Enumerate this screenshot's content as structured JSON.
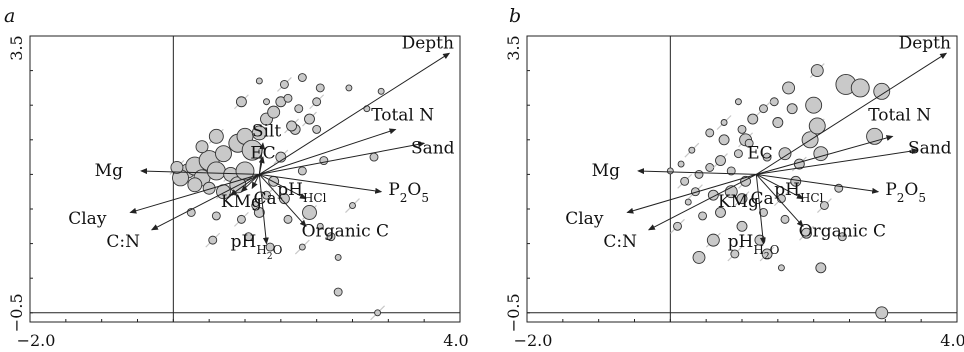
{
  "chart_data": [
    {
      "type": "scatter",
      "panel_label": "a",
      "xlim": [
        -2.0,
        4.0
      ],
      "ylim": [
        -0.5,
        3.5
      ],
      "x_tick_labels": [
        "−2.0",
        "4.0"
      ],
      "y_tick_labels": [
        "3.5",
        "−0.5"
      ],
      "origin": {
        "x": 0.0,
        "y": 1.0
      },
      "reference_lines": {
        "x": 0.0,
        "y": -0.5
      },
      "vectors": [
        {
          "name": "Depth",
          "x": 3.85,
          "y": 3.25
        },
        {
          "name": "Total N",
          "x": 3.1,
          "y": 2.15
        },
        {
          "name": "Sand",
          "x": 3.5,
          "y": 1.95
        },
        {
          "name": "Mg",
          "x": -0.45,
          "y": 1.55
        },
        {
          "name": "Clay",
          "x": -0.6,
          "y": 0.95
        },
        {
          "name": "C:N",
          "x": -0.3,
          "y": 0.7
        },
        {
          "name": "P2O5",
          "x": 2.9,
          "y": 1.25
        },
        {
          "name": "pH_HCl",
          "x": 1.85,
          "y": 1.15
        },
        {
          "name": "Organic C",
          "x": 1.85,
          "y": 0.75
        },
        {
          "name": "pH_H2O",
          "x": 1.3,
          "y": 0.5
        },
        {
          "name": "Silt",
          "x": 1.25,
          "y": 1.95
        },
        {
          "name": "EC",
          "x": 1.25,
          "y": 1.75
        },
        {
          "name": "Ca",
          "x": 1.1,
          "y": 1.3
        },
        {
          "name": "K",
          "x": 0.8,
          "y": 1.2
        },
        {
          "name": "Mg_short",
          "x": 0.95,
          "y": 1.25
        }
      ],
      "vector_origin": {
        "x": 1.2,
        "y": 1.5
      },
      "label_texts": {
        "Depth": "Depth",
        "Total N": "Total N",
        "Sand": "Sand",
        "Mg": "Mg",
        "Clay": "Clay",
        "C:N": "C:N",
        "Organic C": "Organic C",
        "Silt": "Silt",
        "EC": "EC",
        "KMg": "KMg",
        "Ca": "Ca"
      },
      "points": [
        {
          "x": 0.2,
          "y": 1.55,
          "s": 7
        },
        {
          "x": 0.3,
          "y": 1.62,
          "s": 9
        },
        {
          "x": 0.4,
          "y": 1.45,
          "s": 8
        },
        {
          "x": 0.5,
          "y": 1.7,
          "s": 10
        },
        {
          "x": 0.6,
          "y": 1.55,
          "s": 9
        },
        {
          "x": 0.7,
          "y": 1.8,
          "s": 8
        },
        {
          "x": 0.8,
          "y": 1.5,
          "s": 7
        },
        {
          "x": 0.9,
          "y": 1.95,
          "s": 9
        },
        {
          "x": 1.0,
          "y": 2.05,
          "s": 8
        },
        {
          "x": 1.1,
          "y": 1.85,
          "s": 10
        },
        {
          "x": 0.3,
          "y": 1.35,
          "s": 7
        },
        {
          "x": 0.5,
          "y": 1.3,
          "s": 6
        },
        {
          "x": 0.7,
          "y": 1.25,
          "s": 7
        },
        {
          "x": 0.9,
          "y": 1.35,
          "s": 8
        },
        {
          "x": 1.0,
          "y": 1.55,
          "s": 9
        },
        {
          "x": 0.6,
          "y": 2.05,
          "s": 7
        },
        {
          "x": 0.4,
          "y": 1.9,
          "s": 6
        },
        {
          "x": 0.1,
          "y": 1.45,
          "s": 8
        },
        {
          "x": 0.05,
          "y": 1.6,
          "s": 6
        },
        {
          "x": 1.2,
          "y": 2.1,
          "s": 7
        },
        {
          "x": 1.3,
          "y": 2.3,
          "s": 6
        },
        {
          "x": 1.5,
          "y": 2.55,
          "s": 5
        },
        {
          "x": 1.6,
          "y": 2.6,
          "s": 4
        },
        {
          "x": 1.75,
          "y": 2.45,
          "s": 4
        },
        {
          "x": 1.9,
          "y": 2.3,
          "s": 5
        },
        {
          "x": 2.0,
          "y": 2.15,
          "s": 4
        },
        {
          "x": 1.4,
          "y": 2.4,
          "s": 6
        },
        {
          "x": 0.95,
          "y": 2.55,
          "s": 5
        },
        {
          "x": 1.7,
          "y": 2.15,
          "s": 5
        },
        {
          "x": 2.1,
          "y": 1.7,
          "s": 4
        },
        {
          "x": 1.5,
          "y": 1.75,
          "s": 5
        },
        {
          "x": 1.8,
          "y": 1.55,
          "s": 4
        },
        {
          "x": 1.4,
          "y": 1.4,
          "s": 5
        },
        {
          "x": 1.3,
          "y": 1.2,
          "s": 4
        },
        {
          "x": 1.15,
          "y": 1.05,
          "s": 4
        },
        {
          "x": 1.55,
          "y": 1.15,
          "s": 5
        },
        {
          "x": 1.9,
          "y": 0.95,
          "s": 7
        },
        {
          "x": 1.6,
          "y": 0.85,
          "s": 4
        },
        {
          "x": 1.2,
          "y": 0.95,
          "s": 5
        },
        {
          "x": 0.95,
          "y": 0.85,
          "s": 4
        },
        {
          "x": 0.6,
          "y": 0.9,
          "s": 4
        },
        {
          "x": 0.25,
          "y": 0.95,
          "s": 4
        },
        {
          "x": 0.55,
          "y": 0.55,
          "s": 4
        },
        {
          "x": 1.05,
          "y": 0.6,
          "s": 4
        },
        {
          "x": 1.35,
          "y": 0.45,
          "s": 4
        },
        {
          "x": 1.8,
          "y": 0.45,
          "s": 3
        },
        {
          "x": 2.3,
          "y": 0.3,
          "s": 3
        },
        {
          "x": 2.3,
          "y": -0.2,
          "s": 4
        },
        {
          "x": 2.85,
          "y": -0.5,
          "s": 3
        },
        {
          "x": 2.2,
          "y": 0.6,
          "s": 4
        },
        {
          "x": 2.05,
          "y": 0.75,
          "s": 3
        },
        {
          "x": 2.5,
          "y": 1.05,
          "s": 3
        },
        {
          "x": 2.8,
          "y": 1.75,
          "s": 4
        },
        {
          "x": 2.7,
          "y": 2.45,
          "s": 3
        },
        {
          "x": 1.65,
          "y": 2.2,
          "s": 5
        },
        {
          "x": 1.3,
          "y": 2.55,
          "s": 3
        },
        {
          "x": 1.2,
          "y": 2.85,
          "s": 3
        },
        {
          "x": 1.55,
          "y": 2.8,
          "s": 4
        },
        {
          "x": 1.8,
          "y": 2.9,
          "s": 4
        },
        {
          "x": 2.05,
          "y": 2.75,
          "s": 4
        },
        {
          "x": 2.0,
          "y": 2.55,
          "s": 4
        },
        {
          "x": 2.45,
          "y": 2.75,
          "s": 3
        },
        {
          "x": 2.9,
          "y": 2.7,
          "s": 3
        }
      ]
    },
    {
      "type": "scatter",
      "panel_label": "b",
      "xlim": [
        -2.0,
        4.0
      ],
      "ylim": [
        -0.5,
        3.5
      ],
      "x_tick_labels": [
        "−2.0",
        "4.0"
      ],
      "y_tick_labels": [
        "3.5",
        "−0.5"
      ],
      "origin": {
        "x": 0.0,
        "y": 1.0
      },
      "reference_lines": {
        "x": 0.0,
        "y": -0.5
      },
      "vectors": [
        {
          "name": "Depth",
          "x": 3.85,
          "y": 3.25
        },
        {
          "name": "Total N",
          "x": 3.1,
          "y": 2.05
        },
        {
          "name": "Sand",
          "x": 3.45,
          "y": 1.85
        },
        {
          "name": "Mg",
          "x": -0.45,
          "y": 1.55
        },
        {
          "name": "Clay",
          "x": -0.6,
          "y": 0.95
        },
        {
          "name": "C:N",
          "x": -0.3,
          "y": 0.7
        },
        {
          "name": "P2O5",
          "x": 2.9,
          "y": 1.25
        },
        {
          "name": "pH_HCl",
          "x": 1.85,
          "y": 1.15
        },
        {
          "name": "Organic C",
          "x": 1.85,
          "y": 0.75
        },
        {
          "name": "pH_H2O",
          "x": 1.3,
          "y": 0.5
        }
      ],
      "label_texts": {
        "Depth": "Depth",
        "Total N": "Total N",
        "Sand": "Sand",
        "Mg": "Mg",
        "Clay": "Clay",
        "C:N": "C:N",
        "Organic C": "Organic C",
        "EC": "EC",
        "KMg": "KMg",
        "Ca": "Ca"
      },
      "points": [
        {
          "x": 0.2,
          "y": 1.4,
          "s": 4
        },
        {
          "x": 0.4,
          "y": 1.5,
          "s": 4
        },
        {
          "x": 0.55,
          "y": 1.6,
          "s": 4
        },
        {
          "x": 0.7,
          "y": 1.7,
          "s": 5
        },
        {
          "x": 0.85,
          "y": 1.55,
          "s": 4
        },
        {
          "x": 0.95,
          "y": 1.8,
          "s": 4
        },
        {
          "x": 1.05,
          "y": 2.0,
          "s": 6
        },
        {
          "x": 0.75,
          "y": 2.0,
          "s": 5
        },
        {
          "x": 0.55,
          "y": 2.1,
          "s": 4
        },
        {
          "x": 0.3,
          "y": 1.85,
          "s": 3
        },
        {
          "x": 0.15,
          "y": 1.65,
          "s": 3
        },
        {
          "x": 0.0,
          "y": 1.55,
          "s": 3
        },
        {
          "x": 0.35,
          "y": 1.25,
          "s": 4
        },
        {
          "x": 0.6,
          "y": 1.2,
          "s": 5
        },
        {
          "x": 0.85,
          "y": 1.25,
          "s": 6
        },
        {
          "x": 1.0,
          "y": 1.15,
          "s": 5
        },
        {
          "x": 0.7,
          "y": 0.95,
          "s": 5
        },
        {
          "x": 0.45,
          "y": 0.9,
          "s": 4
        },
        {
          "x": 0.6,
          "y": 0.55,
          "s": 6
        },
        {
          "x": 1.0,
          "y": 0.75,
          "s": 5
        },
        {
          "x": 1.3,
          "y": 0.95,
          "s": 4
        },
        {
          "x": 1.55,
          "y": 1.15,
          "s": 4
        },
        {
          "x": 1.75,
          "y": 1.4,
          "s": 5
        },
        {
          "x": 1.6,
          "y": 1.8,
          "s": 6
        },
        {
          "x": 1.8,
          "y": 1.65,
          "s": 5
        },
        {
          "x": 2.1,
          "y": 1.8,
          "s": 7
        },
        {
          "x": 1.95,
          "y": 2.0,
          "s": 8
        },
        {
          "x": 2.05,
          "y": 2.2,
          "s": 8
        },
        {
          "x": 2.0,
          "y": 2.5,
          "s": 8
        },
        {
          "x": 2.45,
          "y": 2.8,
          "s": 10
        },
        {
          "x": 2.65,
          "y": 2.75,
          "s": 9
        },
        {
          "x": 2.95,
          "y": 2.7,
          "s": 8
        },
        {
          "x": 2.85,
          "y": 2.05,
          "s": 8
        },
        {
          "x": 2.05,
          "y": 3.0,
          "s": 6
        },
        {
          "x": 1.65,
          "y": 2.75,
          "s": 6
        },
        {
          "x": 1.45,
          "y": 2.55,
          "s": 4
        },
        {
          "x": 1.3,
          "y": 2.45,
          "s": 4
        },
        {
          "x": 1.15,
          "y": 2.3,
          "s": 5
        },
        {
          "x": 1.0,
          "y": 2.15,
          "s": 4
        },
        {
          "x": 0.75,
          "y": 2.25,
          "s": 3
        },
        {
          "x": 0.95,
          "y": 2.55,
          "s": 3
        },
        {
          "x": 1.5,
          "y": 2.25,
          "s": 5
        },
        {
          "x": 1.9,
          "y": 0.65,
          "s": 5
        },
        {
          "x": 1.6,
          "y": 0.85,
          "s": 4
        },
        {
          "x": 1.25,
          "y": 0.55,
          "s": 5
        },
        {
          "x": 1.35,
          "y": 0.35,
          "s": 5
        },
        {
          "x": 1.55,
          "y": 0.15,
          "s": 3
        },
        {
          "x": 2.1,
          "y": 0.15,
          "s": 5
        },
        {
          "x": 2.15,
          "y": 1.05,
          "s": 4
        },
        {
          "x": 2.35,
          "y": 1.3,
          "s": 4
        },
        {
          "x": 0.4,
          "y": 0.3,
          "s": 6
        },
        {
          "x": 0.1,
          "y": 0.75,
          "s": 4
        },
        {
          "x": 2.95,
          "y": -0.5,
          "s": 6
        },
        {
          "x": 2.4,
          "y": 0.6,
          "s": 4
        },
        {
          "x": 0.9,
          "y": 0.35,
          "s": 4
        },
        {
          "x": 1.1,
          "y": 1.95,
          "s": 4
        },
        {
          "x": 1.35,
          "y": 1.75,
          "s": 4
        },
        {
          "x": 1.05,
          "y": 1.4,
          "s": 5
        },
        {
          "x": 0.25,
          "y": 1.1,
          "s": 3
        },
        {
          "x": 1.7,
          "y": 2.45,
          "s": 5
        }
      ]
    }
  ]
}
